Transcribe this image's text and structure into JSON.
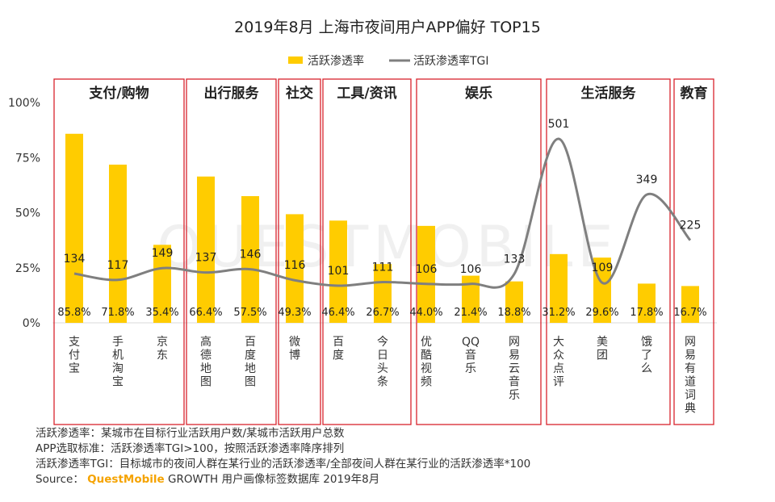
{
  "chart_data": {
    "type": "bar",
    "title": "2019年8月 上海市夜间用户APP偏好 TOP15",
    "legend": [
      "活跃渗透率",
      "活跃渗透率TGI"
    ],
    "y_ticks": [
      "100%",
      "75%",
      "50%",
      "25%",
      "0%"
    ],
    "ylim": [
      0,
      100
    ],
    "tgi_range": [
      0,
      600
    ],
    "groups": [
      {
        "label": "支付/购物",
        "start": 0,
        "end": 2
      },
      {
        "label": "出行服务",
        "start": 3,
        "end": 4
      },
      {
        "label": "社交",
        "start": 5,
        "end": 5
      },
      {
        "label": "工具/资讯",
        "start": 6,
        "end": 7
      },
      {
        "label": "娱乐",
        "start": 8,
        "end": 10
      },
      {
        "label": "生活服务",
        "start": 11,
        "end": 13
      },
      {
        "label": "教育",
        "start": 14,
        "end": 14
      }
    ],
    "categories": [
      "支付宝",
      "手机淘宝",
      "京东",
      "高德地图",
      "百度地图",
      "微博",
      "百度",
      "今日头条",
      "优酷视频",
      "QQ音乐",
      "网易云音乐",
      "大众点评",
      "美团",
      "饿了么",
      "网易有道词典"
    ],
    "penetration": [
      85.8,
      71.8,
      35.4,
      66.4,
      57.5,
      49.3,
      46.4,
      26.7,
      44.0,
      21.4,
      18.8,
      31.2,
      29.6,
      17.8,
      16.7
    ],
    "penetration_labels": [
      "85.8%",
      "71.8%",
      "35.4%",
      "66.4%",
      "57.5%",
      "49.3%",
      "46.4%",
      "26.7%",
      "44.0%",
      "21.4%",
      "18.8%",
      "31.2%",
      "29.6%",
      "17.8%",
      "16.7%"
    ],
    "tgi": [
      134,
      117,
      149,
      137,
      146,
      116,
      101,
      111,
      106,
      106,
      133,
      501,
      109,
      349,
      225
    ],
    "tgi_labels": [
      "134",
      "117",
      "149",
      "137",
      "146",
      "116",
      "101",
      "111",
      "106",
      "106",
      "133",
      "501",
      "109",
      "349",
      "225"
    ],
    "bar_color": "#ffcc00",
    "line_color": "#7f7f7f",
    "box_color": "#d9232d"
  },
  "watermark": "QUESTMOBILE",
  "notes": {
    "line1": "活跃渗透率：某城市在目标行业活跃用户数/某城市活跃用户总数",
    "line2": "APP选取标准：活跃渗透率TGI>100，按照活跃渗透率降序排列",
    "line3": "活跃渗透率TGI：目标城市的夜间人群在某行业的活跃渗透率/全部夜间人群在某行业的活跃渗透率*100",
    "source_prefix": "Source：",
    "source_brand": "QuestMobile",
    "source_rest": " GROWTH 用户画像标签数据库 2019年8月"
  }
}
